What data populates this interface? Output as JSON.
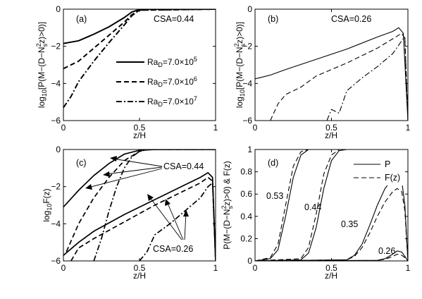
{
  "chart_data": [
    {
      "panel": "a",
      "type": "line",
      "panel_label": "(a)",
      "annotation": "CSA=0.44",
      "xlabel": "z/H",
      "ylabel": "log10[P(M−(D−Ns²z)>0)]",
      "xlim": [
        0,
        1
      ],
      "ylim": [
        -6,
        0
      ],
      "xticks": [
        "0",
        "0.5",
        "1"
      ],
      "yticks": [
        "0",
        "−2",
        "−4",
        "−6"
      ],
      "legend": {
        "placement": "center-right",
        "entries": [
          {
            "prefix": "Ra",
            "sub": "D",
            "value": "=7.0×10",
            "exp": "5",
            "style": "solid"
          },
          {
            "prefix": "Ra",
            "sub": "D",
            "value": "=7.0×10",
            "exp": "6",
            "style": "dashed"
          },
          {
            "prefix": "Ra",
            "sub": "D",
            "value": "=7.0×10",
            "exp": "7",
            "style": "dashdot"
          }
        ]
      },
      "series": [
        {
          "style": "solid",
          "x": [
            0,
            0.1,
            0.2,
            0.3,
            0.4,
            0.45,
            0.5,
            0.6,
            1.0
          ],
          "y": [
            -1.85,
            -1.7,
            -1.35,
            -0.95,
            -0.45,
            -0.15,
            -0.02,
            0,
            0
          ]
        },
        {
          "style": "dashed",
          "x": [
            0,
            0.1,
            0.2,
            0.3,
            0.4,
            0.45,
            0.5,
            1.0
          ],
          "y": [
            -3.2,
            -2.8,
            -2.1,
            -1.4,
            -0.7,
            -0.3,
            -0.05,
            0
          ]
        },
        {
          "style": "dashdot",
          "x": [
            0,
            0.05,
            0.1,
            0.2,
            0.3,
            0.4,
            0.45,
            0.5,
            1.0
          ],
          "y": [
            -5.3,
            -4.7,
            -3.9,
            -2.8,
            -1.8,
            -0.85,
            -0.35,
            -0.05,
            0
          ]
        }
      ]
    },
    {
      "panel": "b",
      "type": "line",
      "panel_label": "(b)",
      "annotation": "CSA=0.26",
      "xlabel": "z/H",
      "ylabel": "log10[P(M−(D−Ns²z)>0)]",
      "xlim": [
        0,
        1
      ],
      "ylim": [
        -6,
        0
      ],
      "xticks": [
        "0",
        "0.5",
        "1"
      ],
      "yticks": [
        "0",
        "−2",
        "−4",
        "−6"
      ],
      "series": [
        {
          "style": "solid",
          "x": [
            0,
            0.1,
            0.2,
            0.4,
            0.6,
            0.8,
            0.9,
            0.94,
            0.97,
            1.0
          ],
          "y": [
            -3.75,
            -3.55,
            -3.25,
            -2.7,
            -2.15,
            -1.5,
            -1.2,
            -1.0,
            -1.3,
            -6
          ]
        },
        {
          "style": "dashed",
          "x": [
            0.1,
            0.15,
            0.2,
            0.3,
            0.4,
            0.6,
            0.8,
            0.9,
            0.96,
            0.98,
            1.0
          ],
          "y": [
            -6,
            -5.1,
            -4.6,
            -4.2,
            -3.6,
            -2.9,
            -2.1,
            -1.6,
            -1.3,
            -1.6,
            -6
          ]
        },
        {
          "style": "dashdot",
          "x": [
            0.47,
            0.5,
            0.55,
            0.6,
            0.7,
            0.8,
            0.9,
            0.96,
            0.98,
            1.0
          ],
          "y": [
            -6,
            -5.4,
            -5.6,
            -4.4,
            -3.7,
            -3.1,
            -2.4,
            -1.7,
            -1.5,
            -6
          ]
        }
      ]
    },
    {
      "panel": "c",
      "type": "line",
      "panel_label": "(c)",
      "annotations": [
        "CSA=0.44",
        "CSA=0.26"
      ],
      "xlabel": "z/H",
      "ylabel": "log10F(z)",
      "xlim": [
        0,
        1
      ],
      "ylim": [
        -6,
        0
      ],
      "xticks": [
        "0",
        "0.5",
        "1"
      ],
      "yticks": [
        "0",
        "−2",
        "−4",
        "−6"
      ],
      "series": [
        {
          "style": "solid",
          "group": "CSA=0.44",
          "x": [
            0,
            0.1,
            0.2,
            0.3,
            0.4,
            0.5,
            0.6,
            1.0
          ],
          "y": [
            -3.1,
            -2.2,
            -1.4,
            -0.75,
            -0.25,
            -0.04,
            0,
            0
          ]
        },
        {
          "style": "dashed",
          "group": "CSA=0.44",
          "x": [
            0.02,
            0.1,
            0.2,
            0.3,
            0.4,
            0.5,
            0.55,
            1.0
          ],
          "y": [
            -5.5,
            -4.0,
            -2.6,
            -1.5,
            -0.6,
            -0.1,
            0,
            0
          ]
        },
        {
          "style": "dashdot",
          "group": "CSA=0.44",
          "x": [
            0.2,
            0.25,
            0.3,
            0.35,
            0.4,
            0.45,
            0.5,
            0.55,
            1.0
          ],
          "y": [
            -6,
            -4.8,
            -3.3,
            -2.0,
            -1.0,
            -0.4,
            -0.1,
            0,
            0
          ]
        },
        {
          "style": "solid",
          "group": "CSA=0.26",
          "x": [
            0,
            0.1,
            0.2,
            0.4,
            0.6,
            0.8,
            0.9,
            0.95,
            0.98,
            1.0
          ],
          "y": [
            -5.7,
            -5.0,
            -4.4,
            -3.5,
            -2.7,
            -1.9,
            -1.5,
            -1.25,
            -1.5,
            -6
          ]
        },
        {
          "style": "dashed",
          "group": "CSA=0.26",
          "x": [
            0.05,
            0.1,
            0.2,
            0.4,
            0.6,
            0.8,
            0.9,
            0.95,
            0.98,
            1.0
          ],
          "y": [
            -6,
            -5.3,
            -4.8,
            -3.9,
            -3.0,
            -2.2,
            -1.8,
            -1.5,
            -1.7,
            -6
          ]
        },
        {
          "style": "dashdot",
          "group": "CSA=0.26",
          "x": [
            0.5,
            0.55,
            0.6,
            0.7,
            0.8,
            0.9,
            0.95,
            0.98,
            1.0
          ],
          "y": [
            -6,
            -5.5,
            -4.6,
            -4.0,
            -3.3,
            -2.6,
            -2.0,
            -1.8,
            -6
          ]
        }
      ]
    },
    {
      "panel": "d",
      "type": "line",
      "panel_label": "(d)",
      "xlabel": "z/H",
      "ylabel": "P(M−(D−Ns²z)>0) & F(z)",
      "xlim": [
        0,
        1
      ],
      "ylim": [
        0,
        1
      ],
      "xticks": [
        "0",
        "0.5",
        "1"
      ],
      "yticks": [
        "0",
        "0.2",
        "0.4",
        "0.6",
        "0.8",
        "1"
      ],
      "curve_labels": [
        "0.53",
        "0.44",
        "0.35",
        "0.26"
      ],
      "legend": {
        "placement": "top-right",
        "entries": [
          {
            "label": "P",
            "style": "solid"
          },
          {
            "label": "F(z)",
            "style": "dashed"
          }
        ]
      },
      "series": [
        {
          "style": "solid",
          "label": "0.53",
          "x": [
            0,
            0.1,
            0.15,
            0.2,
            0.25,
            0.3,
            0.35,
            0.4,
            1.0
          ],
          "y": [
            0,
            0.02,
            0.1,
            0.4,
            0.75,
            0.95,
            1.0,
            1.0,
            1.0
          ]
        },
        {
          "style": "dashed",
          "label": "0.53",
          "x": [
            0,
            0.1,
            0.15,
            0.2,
            0.25,
            0.3,
            0.35,
            0.4,
            1.0
          ],
          "y": [
            0,
            0.03,
            0.15,
            0.5,
            0.85,
            0.98,
            1.0,
            1.0,
            1.0
          ]
        },
        {
          "style": "solid",
          "label": "0.44",
          "x": [
            0,
            0.3,
            0.35,
            0.4,
            0.45,
            0.5,
            0.55,
            0.6,
            1.0
          ],
          "y": [
            0,
            0.01,
            0.07,
            0.3,
            0.65,
            0.9,
            0.99,
            1.0,
            1.0
          ]
        },
        {
          "style": "dashed",
          "label": "0.44",
          "x": [
            0,
            0.3,
            0.35,
            0.4,
            0.45,
            0.5,
            0.55,
            0.6,
            1.0
          ],
          "y": [
            0,
            0.02,
            0.12,
            0.42,
            0.78,
            0.95,
            1.0,
            1.0,
            1.0
          ]
        },
        {
          "style": "solid",
          "label": "0.35",
          "x": [
            0,
            0.6,
            0.65,
            0.7,
            0.75,
            0.8,
            0.85,
            0.9,
            0.93,
            0.96,
            0.98,
            1.0
          ],
          "y": [
            0,
            0.01,
            0.05,
            0.15,
            0.32,
            0.5,
            0.65,
            0.74,
            0.76,
            0.72,
            0.5,
            0
          ]
        },
        {
          "style": "dashed",
          "label": "0.35",
          "x": [
            0,
            0.6,
            0.65,
            0.7,
            0.75,
            0.8,
            0.85,
            0.9,
            0.93,
            0.96,
            0.98,
            1.0
          ],
          "y": [
            0,
            0.01,
            0.04,
            0.12,
            0.25,
            0.4,
            0.53,
            0.62,
            0.65,
            0.62,
            0.45,
            0
          ]
        },
        {
          "style": "solid",
          "label": "0.26",
          "x": [
            0,
            0.8,
            0.85,
            0.9,
            0.93,
            0.96,
            0.98,
            1.0
          ],
          "y": [
            0,
            0.005,
            0.02,
            0.06,
            0.09,
            0.08,
            0.04,
            0
          ]
        },
        {
          "style": "dashed",
          "label": "0.26",
          "x": [
            0,
            0.8,
            0.85,
            0.9,
            0.93,
            0.96,
            0.98,
            1.0
          ],
          "y": [
            0,
            0.004,
            0.015,
            0.04,
            0.06,
            0.05,
            0.03,
            0
          ]
        }
      ]
    }
  ]
}
